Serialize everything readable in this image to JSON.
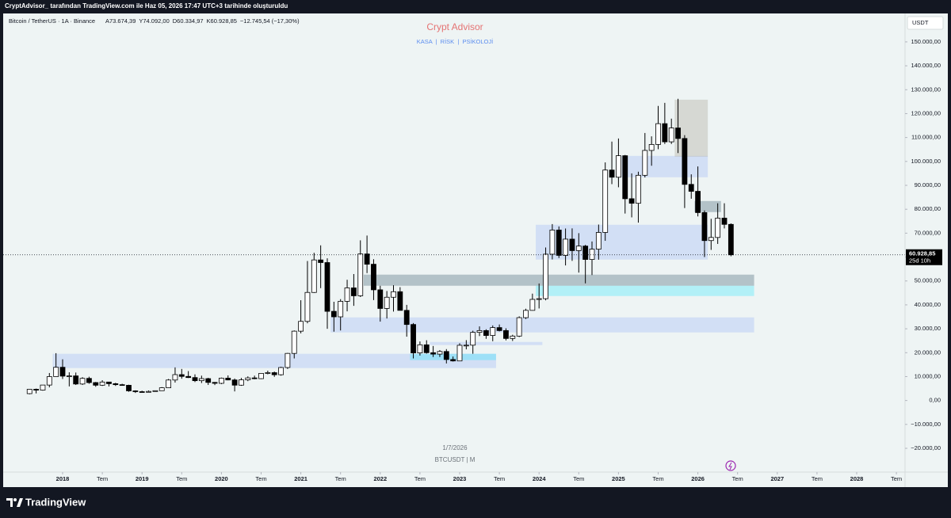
{
  "chart_data": {
    "type": "candlestick",
    "attribution": "CryptAdvisor_ tarafından TradingView.com ile Haz 05, 2026 17:47 UTC+3 tarihinde oluşturuldu",
    "symbol": "Bitcoin / TetherUS · 1A · Binance",
    "ohlc_fields": [
      "A73.674,39",
      "Y74.092,00",
      "D60.334,97",
      "K60.928,85",
      "−12.745,54 (−17,30%)"
    ],
    "title": "Crypt Advisor",
    "subtitle": "KASA  |  RİSK  |  PSİKOLOJİ",
    "currency": "USDT",
    "last_price": {
      "value": 60928.85,
      "label": "60.928,85"
    },
    "countdown": "25d 10h",
    "watermark_date": "1/7/2026",
    "watermark_symbol": "BTCUSDT | M",
    "brand": "TradingView",
    "up_color": "#ffffff",
    "down_color": "#000000",
    "border_color": "#000000",
    "x": [
      "2017-08",
      "2017-09",
      "2017-10",
      "2017-11",
      "2017-12",
      "2018-01",
      "2018-02",
      "2018-03",
      "2018-04",
      "2018-05",
      "2018-06",
      "2018-07",
      "2018-08",
      "2018-09",
      "2018-10",
      "2018-11",
      "2018-12",
      "2019-01",
      "2019-02",
      "2019-03",
      "2019-04",
      "2019-05",
      "2019-06",
      "2019-07",
      "2019-08",
      "2019-09",
      "2019-10",
      "2019-11",
      "2019-12",
      "2020-01",
      "2020-02",
      "2020-03",
      "2020-04",
      "2020-05",
      "2020-06",
      "2020-07",
      "2020-08",
      "2020-09",
      "2020-10",
      "2020-11",
      "2020-12",
      "2021-01",
      "2021-02",
      "2021-03",
      "2021-04",
      "2021-05",
      "2021-06",
      "2021-07",
      "2021-08",
      "2021-09",
      "2021-10",
      "2021-11",
      "2021-12",
      "2022-01",
      "2022-02",
      "2022-03",
      "2022-04",
      "2022-05",
      "2022-06",
      "2022-07",
      "2022-08",
      "2022-09",
      "2022-10",
      "2022-11",
      "2022-12",
      "2023-01",
      "2023-02",
      "2023-03",
      "2023-04",
      "2023-05",
      "2023-06",
      "2023-07",
      "2023-08",
      "2023-09",
      "2023-10",
      "2023-11",
      "2023-12",
      "2024-01",
      "2024-02",
      "2024-03",
      "2024-04",
      "2024-05",
      "2024-06",
      "2024-07",
      "2024-08",
      "2024-09",
      "2024-10",
      "2024-11",
      "2024-12",
      "2025-01",
      "2025-02",
      "2025-03",
      "2025-04",
      "2025-05",
      "2025-06",
      "2025-07",
      "2025-08",
      "2025-09",
      "2025-10",
      "2025-11",
      "2025-12",
      "2026-01",
      "2026-02",
      "2026-03",
      "2026-04",
      "2026-05",
      "2026-06"
    ],
    "open": [
      2870,
      4700,
      4340,
      6470,
      10000,
      13900,
      10200,
      10300,
      6900,
      9250,
      7500,
      6400,
      7730,
      7030,
      6630,
      6370,
      4040,
      3700,
      3440,
      3800,
      4100,
      5320,
      8570,
      10820,
      10080,
      9600,
      8290,
      9150,
      7570,
      7190,
      9350,
      8600,
      6420,
      8630,
      9450,
      9140,
      11350,
      11650,
      10780,
      13800,
      19700,
      29000,
      33100,
      45200,
      58800,
      57700,
      37300,
      35000,
      41500,
      47100,
      43800,
      61300,
      57000,
      46300,
      38500,
      43200,
      45500,
      37700,
      31800,
      19900,
      23300,
      20000,
      19400,
      20500,
      17150,
      16550,
      23100,
      23150,
      28500,
      29250,
      27200,
      30500,
      29250,
      25950,
      26950,
      34650,
      37700,
      42300,
      42600,
      61200,
      71300,
      60700,
      67500,
      62700,
      64600,
      59000,
      63300,
      70300,
      96400,
      93400,
      102400,
      84400,
      82500,
      94200,
      104600,
      107100,
      115800,
      108200,
      114000,
      109600,
      90400,
      87500,
      78600,
      66900,
      68200,
      76300,
      73674.39
    ],
    "high": [
      4740,
      4980,
      6470,
      11500,
      19800,
      17250,
      11800,
      11700,
      9750,
      9950,
      7750,
      8500,
      7760,
      7400,
      7000,
      6600,
      4250,
      4100,
      4200,
      4100,
      5600,
      9000,
      13850,
      13200,
      12300,
      10950,
      10400,
      9500,
      7750,
      9600,
      10500,
      9200,
      9450,
      10100,
      10400,
      11450,
      12480,
      12100,
      14100,
      19900,
      29300,
      41950,
      58350,
      61800,
      64900,
      59500,
      41300,
      42400,
      50500,
      52900,
      67000,
      69000,
      59100,
      48000,
      45800,
      48200,
      47400,
      40000,
      32400,
      24700,
      25200,
      22800,
      21100,
      21500,
      18400,
      23950,
      25250,
      29200,
      31000,
      29800,
      31400,
      31800,
      30200,
      27500,
      35200,
      38400,
      44700,
      48950,
      64000,
      73800,
      72800,
      71950,
      72000,
      70000,
      65100,
      66500,
      73600,
      99600,
      108300,
      109600,
      102700,
      95000,
      95700,
      111900,
      110500,
      123200,
      124500,
      117900,
      126200,
      111000,
      94600,
      97900,
      79500,
      76000,
      82500,
      82500,
      74092
    ],
    "low": [
      2600,
      2970,
      4110,
      5500,
      10000,
      9000,
      5900,
      6500,
      6500,
      7000,
      5750,
      6100,
      5880,
      6100,
      6200,
      3650,
      3150,
      3350,
      3400,
      3700,
      4100,
      5300,
      7500,
      9100,
      9400,
      7700,
      7300,
      6500,
      6450,
      6850,
      8450,
      3800,
      6150,
      8100,
      8900,
      8950,
      10960,
      9900,
      10400,
      13200,
      17600,
      28100,
      32300,
      45000,
      47000,
      30000,
      28800,
      29300,
      37300,
      39600,
      43300,
      53300,
      42000,
      33000,
      34300,
      37200,
      37700,
      26700,
      17600,
      18800,
      19600,
      18200,
      18200,
      15500,
      16300,
      16500,
      21400,
      19550,
      26950,
      25800,
      24800,
      28900,
      25150,
      24900,
      26550,
      34100,
      37600,
      38500,
      41900,
      59000,
      59600,
      56500,
      58400,
      53500,
      49000,
      52500,
      58900,
      66800,
      90500,
      89200,
      78200,
      76600,
      74400,
      93300,
      98200,
      105100,
      107300,
      107300,
      103500,
      80500,
      84400,
      77000,
      60000,
      63000,
      65500,
      72000,
      60334.97
    ],
    "close": [
      4700,
      4340,
      6470,
      10000,
      13900,
      10200,
      10300,
      6900,
      9250,
      7500,
      6400,
      7730,
      7030,
      6630,
      6370,
      4040,
      3700,
      3440,
      3800,
      4100,
      5320,
      8570,
      10820,
      10080,
      9600,
      8290,
      9150,
      7570,
      7190,
      9350,
      8600,
      6420,
      8630,
      9450,
      9140,
      11350,
      11650,
      10780,
      13800,
      19700,
      29000,
      33100,
      45200,
      58800,
      57700,
      37300,
      35000,
      41500,
      47100,
      43800,
      61300,
      57000,
      46300,
      38500,
      43200,
      45500,
      37700,
      31800,
      19900,
      23300,
      20000,
      19400,
      20500,
      17150,
      16550,
      23100,
      23150,
      28500,
      29250,
      27200,
      30500,
      29250,
      25950,
      26950,
      34650,
      37700,
      42300,
      42600,
      61200,
      71300,
      60700,
      67500,
      62700,
      64600,
      59000,
      63300,
      70300,
      96400,
      93400,
      102400,
      84400,
      82500,
      94200,
      104600,
      107100,
      115800,
      108200,
      114000,
      109600,
      90400,
      87500,
      78600,
      66900,
      68200,
      76300,
      73674.39,
      60928.85
    ],
    "zones": [
      {
        "from": "2017-12",
        "to": "2023-06",
        "low": 13580,
        "high": 19540,
        "color": "#2962ff24"
      },
      {
        "from": "2022-06",
        "to": "2023-06",
        "low": 16890,
        "high": 19540,
        "color": "#00e5ff40"
      },
      {
        "from": "2021-06",
        "to": "2026-09",
        "low": 28480,
        "high": 34770,
        "color": "#2962ff24"
      },
      {
        "from": "2021-11",
        "to": "2026-09",
        "low": 48010,
        "high": 52650,
        "color": "#78909c80"
      },
      {
        "from": "2024-01",
        "to": "2026-09",
        "low": 43710,
        "high": 48010,
        "color": "#00e5ff40"
      },
      {
        "from": "2024-01",
        "to": "2026-02",
        "low": 58940,
        "high": 73510,
        "color": "#2962ff24"
      },
      {
        "from": "2025-02",
        "to": "2026-02",
        "low": 93380,
        "high": 102320,
        "color": "#2962ff24"
      },
      {
        "from": "2025-10",
        "to": "2026-02",
        "low": 101990,
        "high": 125830,
        "color": "#b0aa9e60"
      },
      {
        "from": "2026-01",
        "to": "2026-04",
        "low": 78810,
        "high": 83440,
        "color": "#78909c80"
      },
      {
        "from": "2022-09",
        "to": "2024-01",
        "low": 23200,
        "high": 24500,
        "color": "#2962ff24"
      }
    ],
    "ylim": [
      -29600,
      160900
    ],
    "yticks": [
      {
        "value": -20000,
        "label": "−20.000,00"
      },
      {
        "value": -10000,
        "label": "−10.000,00"
      },
      {
        "value": 0,
        "label": "0,00"
      },
      {
        "value": 10000,
        "label": "10.000,00"
      },
      {
        "value": 20000,
        "label": "20.000,00"
      },
      {
        "value": 30000,
        "label": "30.000,00"
      },
      {
        "value": 40000,
        "label": "40.000,00"
      },
      {
        "value": 50000,
        "label": "50.000,00"
      },
      {
        "value": 60000,
        "label": "60.000,00"
      },
      {
        "value": 70000,
        "label": "70.000,00"
      },
      {
        "value": 80000,
        "label": "80.000,00"
      },
      {
        "value": 90000,
        "label": "90.000,00"
      },
      {
        "value": 100000,
        "label": "100.000,00"
      },
      {
        "value": 110000,
        "label": "110.000,00"
      },
      {
        "value": 120000,
        "label": "120.000,00"
      },
      {
        "value": 130000,
        "label": "130.000,00"
      },
      {
        "value": 140000,
        "label": "140.000,00"
      },
      {
        "value": 150000,
        "label": "150.000,00"
      }
    ],
    "xticks": [
      {
        "value": "2018-01",
        "label": "2018"
      },
      {
        "value": "2018-07",
        "label": "Tem"
      },
      {
        "value": "2019-01",
        "label": "2019"
      },
      {
        "value": "2019-07",
        "label": "Tem"
      },
      {
        "value": "2020-01",
        "label": "2020"
      },
      {
        "value": "2020-07",
        "label": "Tem"
      },
      {
        "value": "2021-01",
        "label": "2021"
      },
      {
        "value": "2021-07",
        "label": "Tem"
      },
      {
        "value": "2022-01",
        "label": "2022"
      },
      {
        "value": "2022-07",
        "label": "Tem"
      },
      {
        "value": "2023-01",
        "label": "2023"
      },
      {
        "value": "2023-07",
        "label": "Tem"
      },
      {
        "value": "2024-01",
        "label": "2024"
      },
      {
        "value": "2024-07",
        "label": "Tem"
      },
      {
        "value": "2025-01",
        "label": "2025"
      },
      {
        "value": "2025-07",
        "label": "Tem"
      },
      {
        "value": "2026-01",
        "label": "2026"
      },
      {
        "value": "2026-07",
        "label": "Tem"
      },
      {
        "value": "2027-01",
        "label": "2027"
      },
      {
        "value": "2027-07",
        "label": "Tem"
      },
      {
        "value": "2028-01",
        "label": "2028"
      },
      {
        "value": "2028-07",
        "label": "Tem"
      }
    ]
  }
}
